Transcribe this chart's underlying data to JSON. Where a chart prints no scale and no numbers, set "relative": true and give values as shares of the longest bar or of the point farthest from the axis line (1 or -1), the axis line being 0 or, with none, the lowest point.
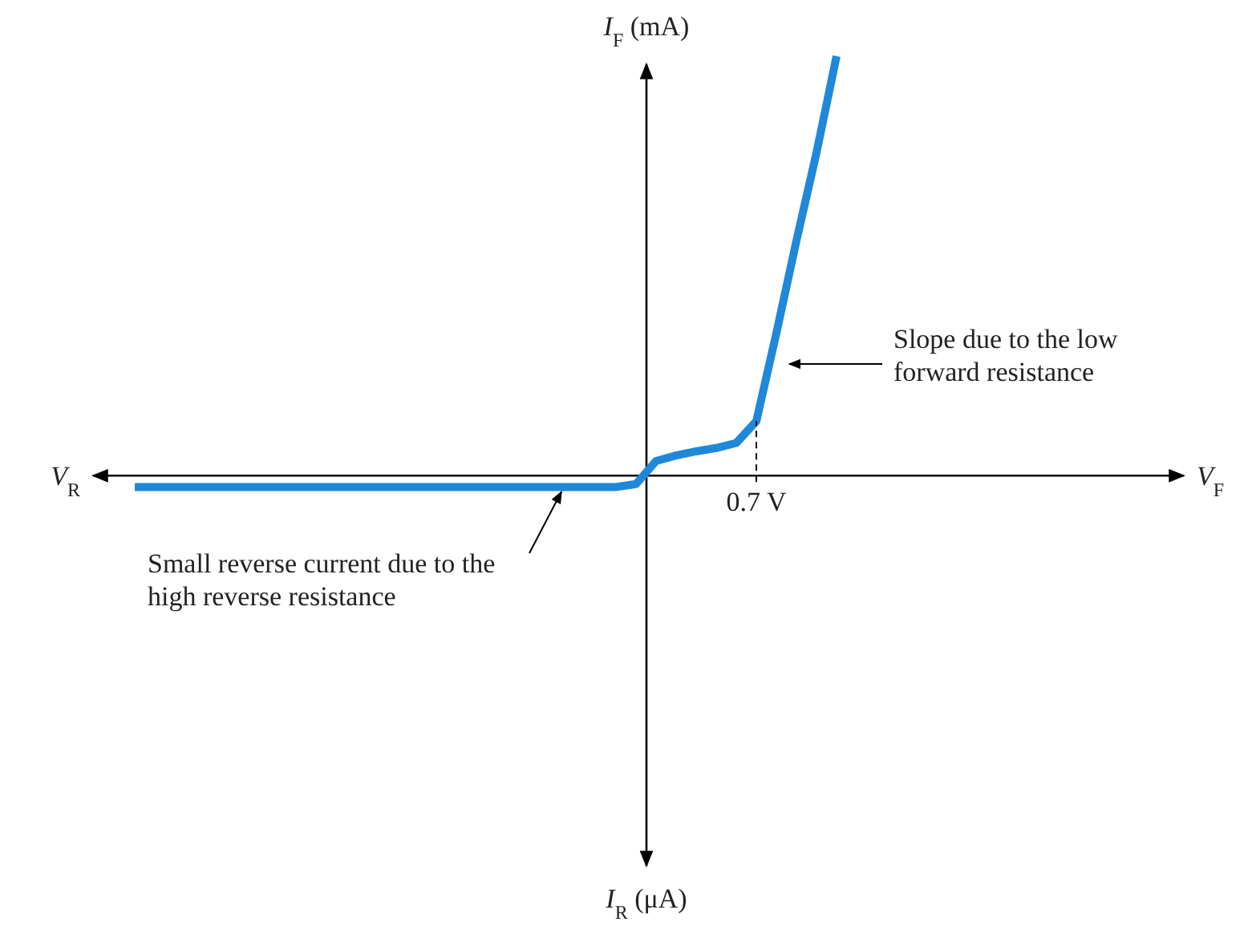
{
  "chart_data": {
    "type": "line",
    "relative": true,
    "ylabel": "I$_{F}$ (mA)",
    "categories": [
      null,
      null,
      null,
      null,
      null,
      null,
      null,
      null,
      null,
      null,
      null,
      null,
      null,
      null,
      null,
      null,
      null,
      null,
      null,
      null,
      null,
      null,
      null,
      null,
      null,
      null,
      null,
      null,
      null,
      null,
      null,
      null,
      null,
      null,
      null,
      null
    ],
    "series": [
      {
        "color": "#1f88d9",
        "values": [
          -0.027,
          -0.027,
          -0.027,
          -0.027,
          -0.027,
          -0.027,
          -0.027,
          -0.027,
          -0.027,
          -0.027,
          -0.027,
          -0.027,
          -0.027,
          -0.027,
          -0.027,
          -0.027,
          -0.027,
          -0.027,
          -0.027,
          -0.027,
          -0.027,
          -0.027,
          -0.027,
          -0.027,
          -0.027,
          -0.02,
          0.035,
          0.048,
          0.058,
          0.066,
          0.078,
          0.13,
          0.34,
          0.56,
          0.77,
          1
        ]
      }
    ],
    "annotations": [
      "V$_{R}$",
      "I$_{R}$ (μA)",
      "Slope due to the low forward resistance",
      "Small reverse current due to the high reverse resistance",
      {
        "text": "0.7 V",
        "y": 0.13
      },
      "V$_{F}$"
    ],
    "marker": "none",
    "line_style": "solid"
  }
}
